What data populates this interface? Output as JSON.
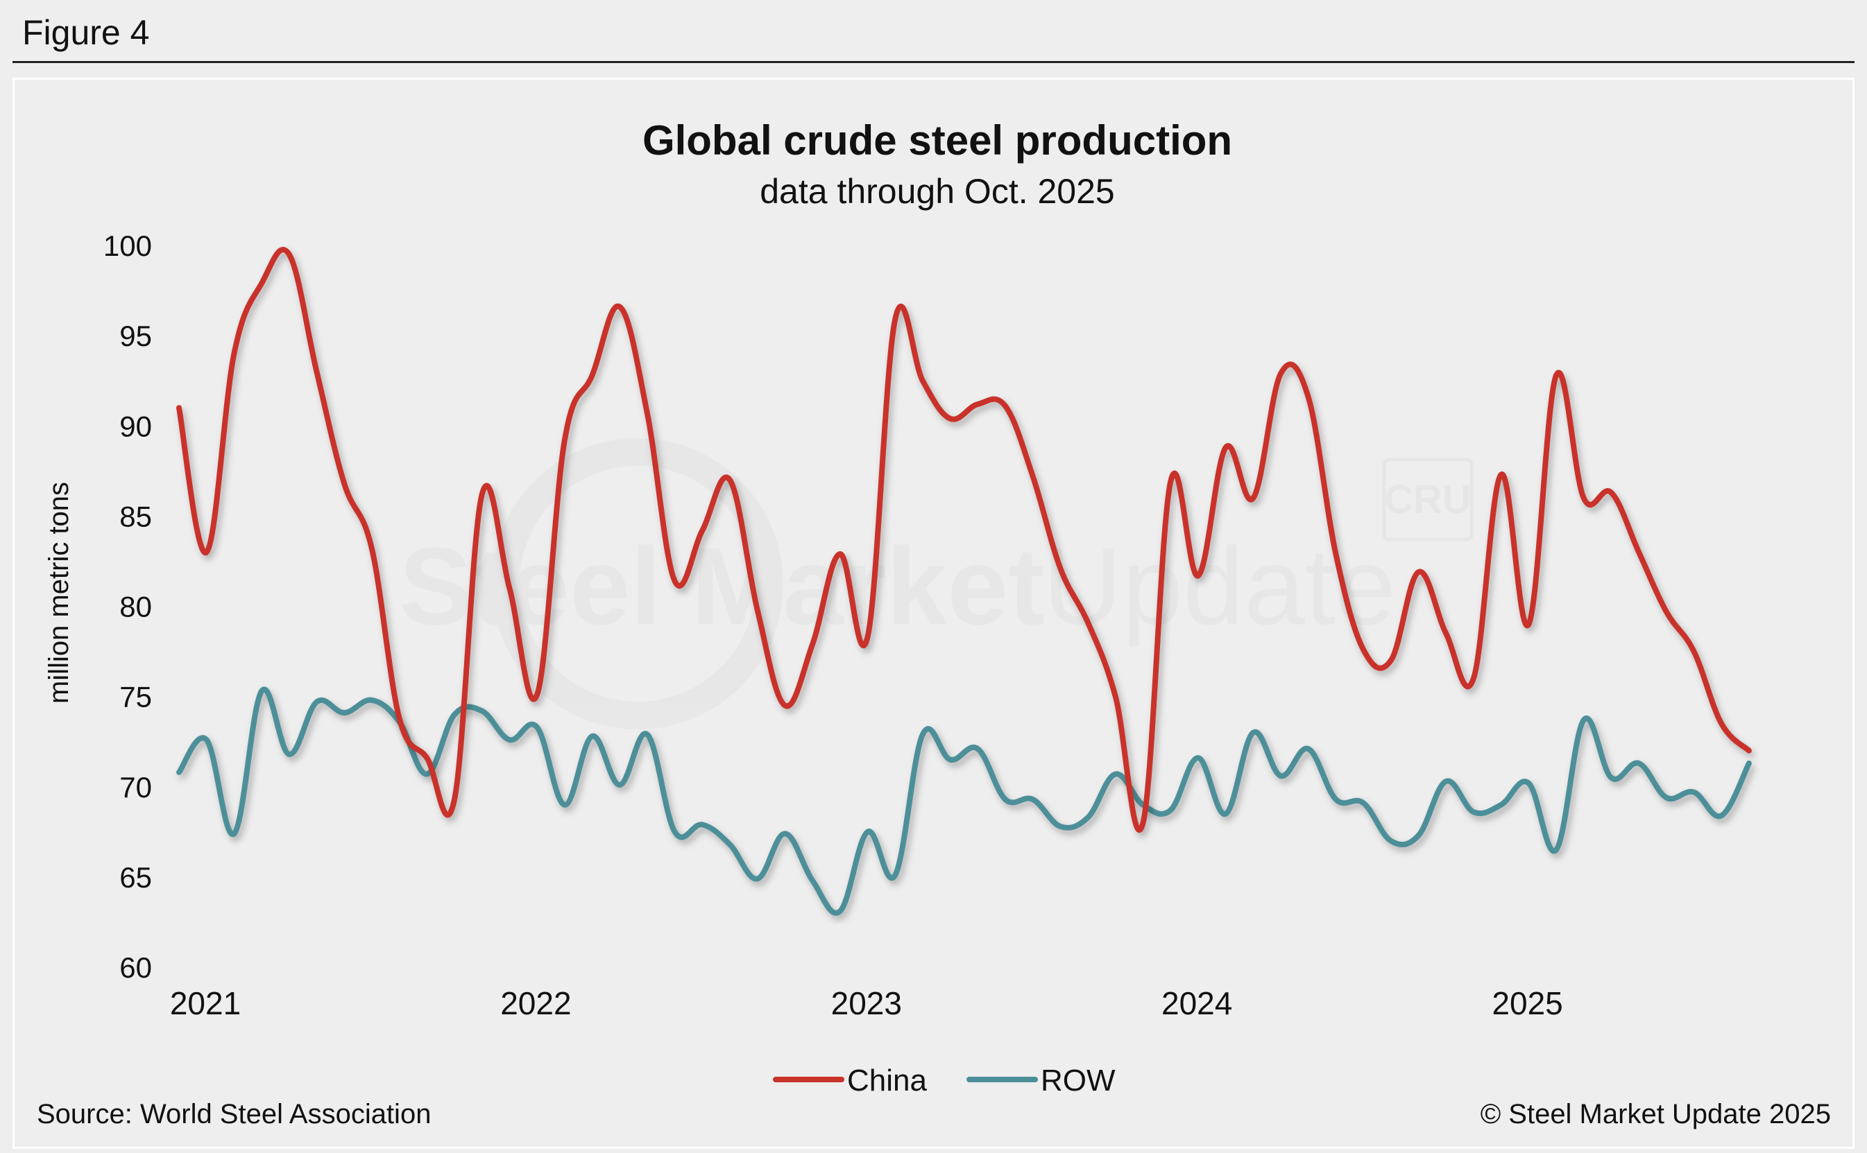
{
  "figure_label": "Figure 4",
  "source": "Source: World Steel Association",
  "copyright": "© Steel Market Update 2025",
  "watermark": {
    "text_bold": "Steel Market",
    "text_light": "Update",
    "logo": "CRU"
  },
  "chart_data": {
    "type": "line",
    "title": "Global crude steel production",
    "subtitle": "data through Oct. 2025",
    "ylabel": "million metric tons",
    "xlabel": "",
    "ylim": [
      60,
      100
    ],
    "yticks": [
      60,
      65,
      70,
      75,
      80,
      85,
      90,
      95,
      100
    ],
    "xticks": [
      "2021",
      "2022",
      "2023",
      "2024",
      "2025"
    ],
    "grid": false,
    "legend_position": "bottom-center",
    "x": [
      "2021-01",
      "2021-02",
      "2021-03",
      "2021-04",
      "2021-05",
      "2021-06",
      "2021-07",
      "2021-08",
      "2021-09",
      "2021-10",
      "2021-11",
      "2021-12",
      "2022-01",
      "2022-02",
      "2022-03",
      "2022-04",
      "2022-05",
      "2022-06",
      "2022-07",
      "2022-08",
      "2022-09",
      "2022-10",
      "2022-11",
      "2022-12",
      "2023-01",
      "2023-02",
      "2023-03",
      "2023-04",
      "2023-05",
      "2023-06",
      "2023-07",
      "2023-08",
      "2023-09",
      "2023-10",
      "2023-11",
      "2023-12",
      "2024-01",
      "2024-02",
      "2024-03",
      "2024-04",
      "2024-05",
      "2024-06",
      "2024-07",
      "2024-08",
      "2024-09",
      "2024-10",
      "2024-11",
      "2024-12",
      "2025-01",
      "2025-02",
      "2025-03",
      "2025-04",
      "2025-05",
      "2025-06",
      "2025-07",
      "2025-08",
      "2025-09",
      "2025-10"
    ],
    "series": [
      {
        "name": "China",
        "color": "#c8332a",
        "values": [
          91.0,
          83.0,
          94.0,
          97.9,
          99.5,
          93.0,
          86.8,
          83.2,
          73.8,
          71.6,
          69.3,
          86.2,
          81.0,
          75.1,
          89.2,
          92.8,
          96.6,
          90.7,
          81.4,
          84.2,
          87.0,
          79.8,
          74.5,
          77.9,
          82.9,
          78.3,
          95.9,
          92.5,
          90.4,
          91.2,
          91.1,
          87.2,
          82.1,
          79.1,
          75.0,
          68.0,
          86.9,
          81.7,
          88.8,
          86.0,
          92.9,
          91.6,
          82.9,
          77.6,
          77.0,
          81.9,
          78.5,
          76.0,
          87.3,
          79.0,
          92.8,
          86.0,
          86.3,
          83.0,
          79.7,
          77.5,
          73.5,
          72.0
        ]
      },
      {
        "name": "ROW",
        "color": "#4d8f99",
        "values": [
          70.8,
          72.6,
          67.4,
          75.3,
          71.8,
          74.7,
          74.1,
          74.8,
          73.6,
          70.7,
          74.0,
          74.2,
          72.6,
          73.3,
          69.0,
          72.8,
          70.1,
          72.9,
          67.5,
          67.9,
          66.8,
          64.9,
          67.4,
          64.8,
          63.1,
          67.5,
          65.1,
          72.9,
          71.5,
          72.1,
          69.3,
          69.3,
          67.8,
          68.3,
          70.7,
          69.0,
          68.7,
          71.6,
          68.5,
          73.0,
          70.6,
          72.1,
          69.3,
          69.1,
          67.0,
          67.3,
          70.3,
          68.6,
          69.0,
          70.2,
          66.5,
          73.7,
          70.5,
          71.3,
          69.4,
          69.7,
          68.4,
          71.3
        ]
      }
    ]
  }
}
